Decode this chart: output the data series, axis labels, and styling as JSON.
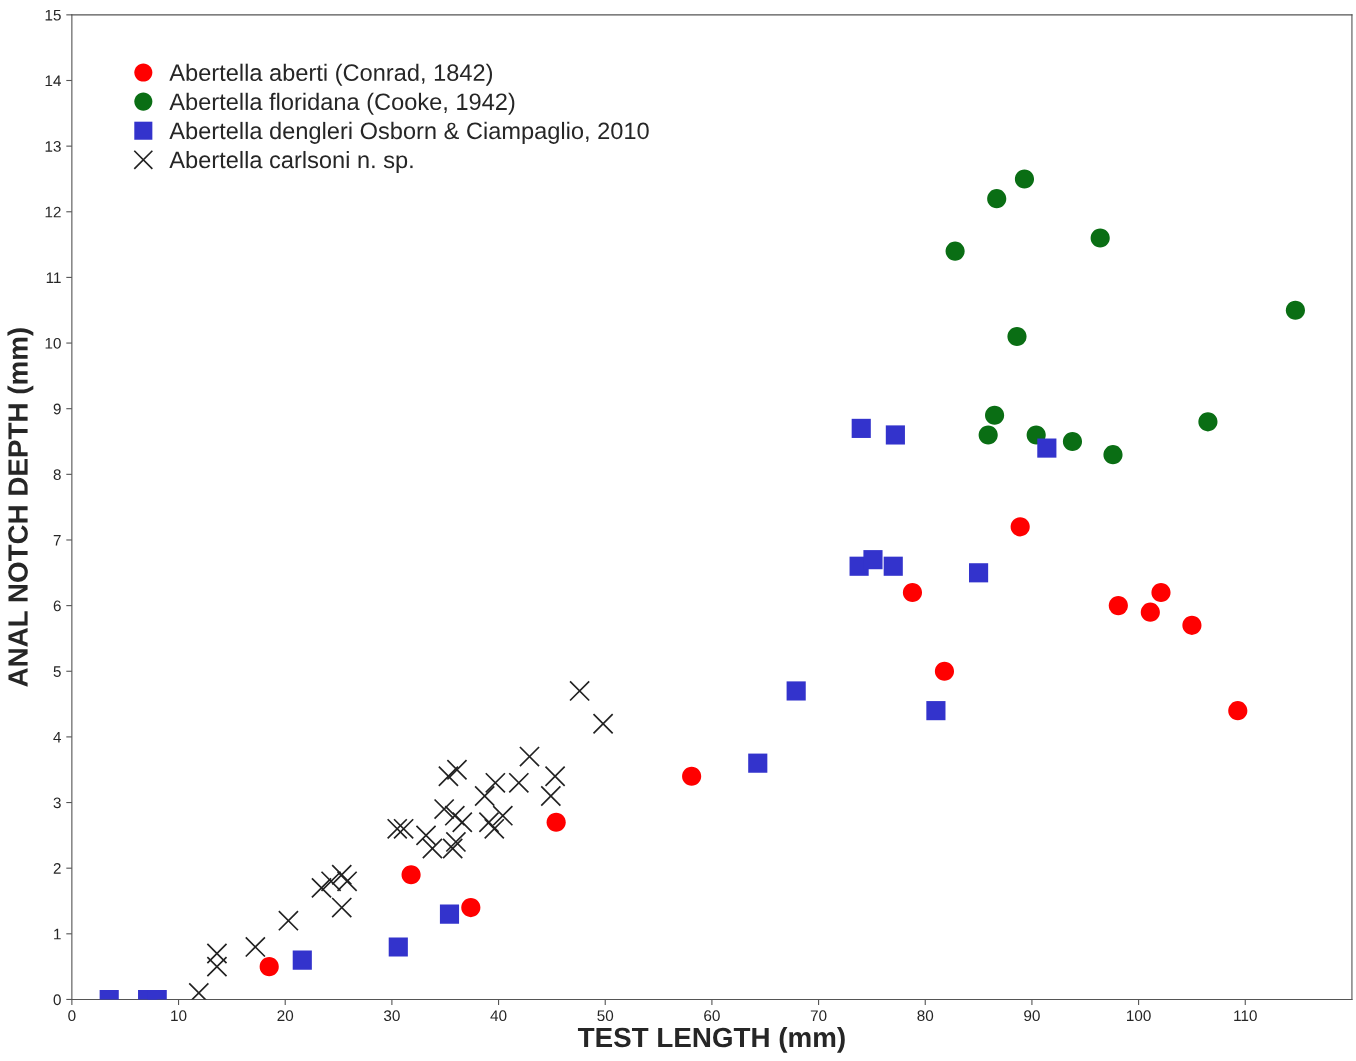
{
  "chart_data": {
    "type": "scatter",
    "xlabel": "TEST LENGTH (mm)",
    "ylabel": "ANAL NOTCH DEPTH (mm)",
    "xlim": [
      0,
      120
    ],
    "ylim": [
      0,
      15
    ],
    "xticks": [
      0,
      10,
      20,
      30,
      40,
      50,
      60,
      70,
      80,
      90,
      100,
      110
    ],
    "yticks": [
      0,
      1,
      2,
      3,
      4,
      5,
      6,
      7,
      8,
      9,
      10,
      11,
      12,
      13,
      14,
      15
    ],
    "grid": false,
    "legend": "top left",
    "series": [
      {
        "name": "Abertella aberti (Conrad, 1842)",
        "color": "#ff0000",
        "marker": "circle",
        "x": [
          18.5,
          31.8,
          37.4,
          45.4,
          58.1,
          78.8,
          81.8,
          88.9,
          98.1,
          101.1,
          102.1,
          105.0,
          109.3
        ],
        "values": [
          0.5,
          1.9,
          1.4,
          2.7,
          3.4,
          6.2,
          5.0,
          7.2,
          6.0,
          5.9,
          6.2,
          5.7,
          4.4
        ]
      },
      {
        "name": "Abertella floridana (Cooke, 1942)",
        "color": "#0a6e14",
        "marker": "circle",
        "x": [
          82.8,
          86.7,
          89.3,
          96.4,
          114.7,
          88.6,
          86.5,
          85.9,
          90.4,
          93.8,
          97.6,
          106.5
        ],
        "values": [
          11.4,
          12.2,
          12.5,
          11.6,
          10.5,
          10.1,
          8.9,
          8.6,
          8.6,
          8.5,
          8.3,
          8.8
        ]
      },
      {
        "name": "Abertella dengleri Osborn & Ciampaglio, 2010",
        "color": "#3333cc",
        "marker": "square",
        "x": [
          3.5,
          7.1,
          8.0,
          21.6,
          30.6,
          35.4,
          64.3,
          67.9,
          81.0,
          85.0,
          73.8,
          75.1,
          77.0,
          74.0,
          77.2,
          91.4
        ],
        "values": [
          0,
          0,
          0,
          0.6,
          0.8,
          1.3,
          3.6,
          4.7,
          4.4,
          6.5,
          6.6,
          6.7,
          6.6,
          8.7,
          8.6,
          8.4
        ]
      },
      {
        "name": "Abertella carlsoni n. sp.",
        "color": "#222222",
        "marker": "cross",
        "x": [
          11.9,
          13.6,
          13.6,
          17.2,
          20.3,
          23.4,
          24.3,
          25.3,
          25.8,
          25.3,
          30.5,
          31.1,
          33.2,
          33.8,
          35.3,
          36.1,
          34.9,
          35.9,
          36.6,
          35.7,
          36.0,
          38.7,
          39.7,
          39.1,
          39.6,
          40.4,
          41.9,
          42.9,
          45.3,
          44.9,
          47.6,
          49.8
        ],
        "values": [
          0.1,
          0.7,
          0.5,
          0.8,
          1.2,
          1.7,
          1.8,
          1.9,
          1.8,
          1.4,
          2.6,
          2.6,
          2.5,
          2.3,
          3.4,
          3.5,
          2.9,
          2.8,
          2.7,
          2.3,
          2.4,
          3.1,
          3.3,
          2.7,
          2.6,
          2.8,
          3.3,
          3.7,
          3.4,
          3.1,
          4.7,
          4.2
        ]
      }
    ]
  }
}
